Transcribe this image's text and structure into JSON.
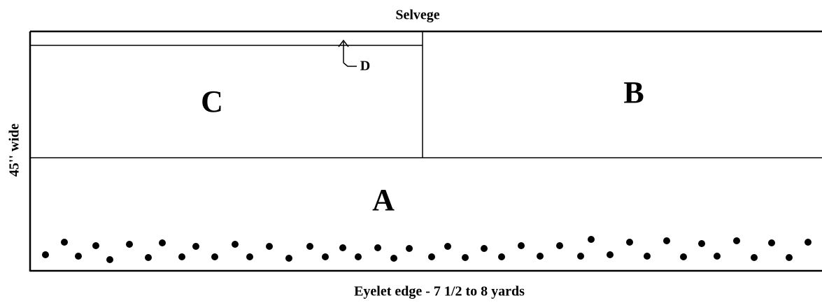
{
  "top_label": "Selvege",
  "side_label": "45'' wide",
  "bottom_label": "Eyelet edge - 7 1/2 to 8 yards",
  "pieces": {
    "a": "A",
    "b": "B",
    "c": "C",
    "d": "D"
  }
}
